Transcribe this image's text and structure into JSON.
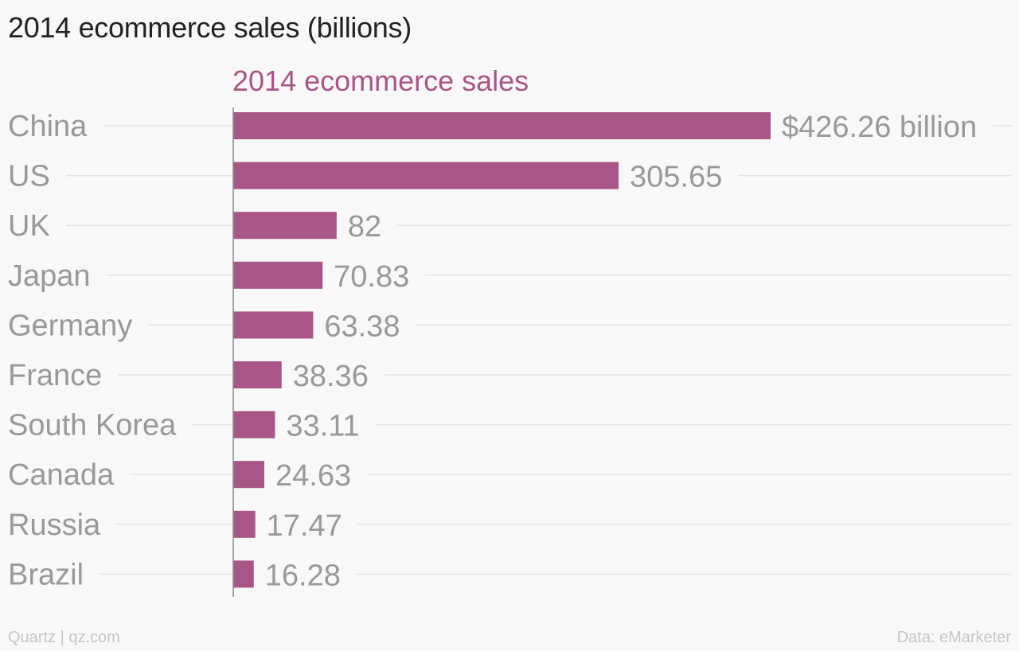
{
  "header": {
    "title": "2014 ecommerce sales (billions)"
  },
  "footer": {
    "credit": "Quartz | qz.com",
    "source": "Data: eMarketer"
  },
  "colors": {
    "bar": "#a85587",
    "label": "#999999",
    "series_title": "#a85587",
    "gridline": "#e4e4e4",
    "axis": "#888888"
  },
  "chart_data": {
    "type": "bar",
    "orientation": "horizontal",
    "series_title": "2014 ecommerce sales",
    "categories": [
      "China",
      "US",
      "UK",
      "Japan",
      "Germany",
      "France",
      "South Korea",
      "Canada",
      "Russia",
      "Brazil"
    ],
    "values": [
      426.26,
      305.65,
      82,
      70.83,
      63.38,
      38.36,
      33.11,
      24.63,
      17.47,
      16.28
    ],
    "value_labels": [
      "$426.26 billion",
      "305.65",
      "82",
      "70.83",
      "63.38",
      "38.36",
      "33.11",
      "24.63",
      "17.47",
      "16.28"
    ],
    "xlim": [
      0,
      500
    ],
    "grid": true,
    "legend": "none"
  }
}
